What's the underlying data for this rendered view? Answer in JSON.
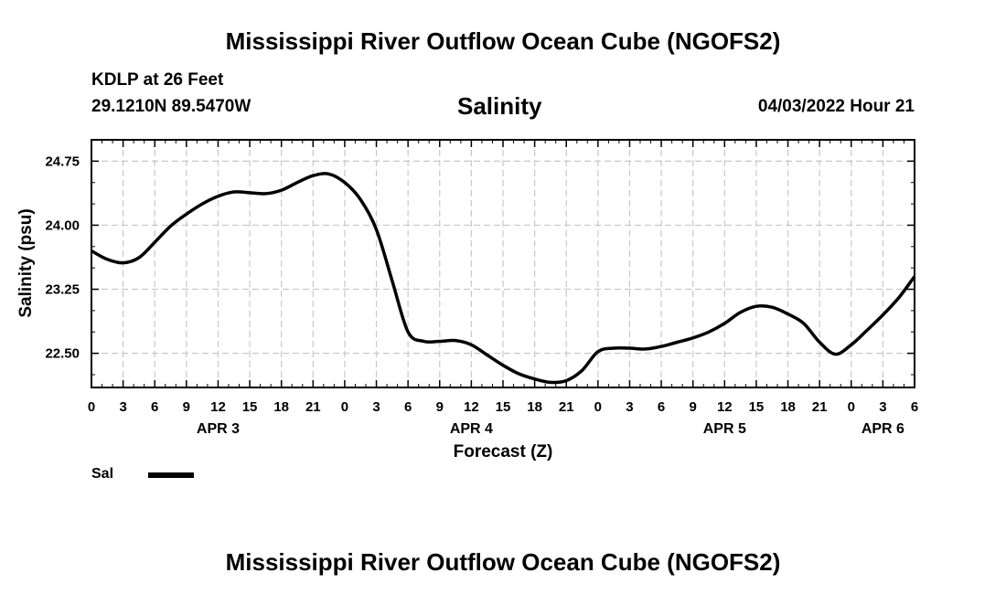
{
  "header": {
    "title": "Mississippi River Outflow Ocean Cube (NGOFS2)",
    "station": "KDLP at 26 Feet",
    "coordinates": "29.1210N  89.5470W",
    "variable": "Salinity",
    "datetime": "04/03/2022 Hour 21"
  },
  "footer": {
    "title": "Mississippi River Outflow Ocean Cube (NGOFS2)"
  },
  "legend": {
    "label": "Sal",
    "color": "#000000"
  },
  "chart_data": {
    "type": "line",
    "title": "Salinity",
    "xlabel": "Forecast (Z)",
    "ylabel": "Salinity (psu)",
    "xlim": [
      0,
      78
    ],
    "ylim": [
      22.1,
      25.0
    ],
    "grid": true,
    "x_tick_labels": [
      "0",
      "3",
      "6",
      "9",
      "12",
      "15",
      "18",
      "21",
      "0",
      "3",
      "6",
      "9",
      "12",
      "15",
      "18",
      "21",
      "0",
      "3",
      "6",
      "9",
      "12",
      "15",
      "18",
      "21",
      "0",
      "3",
      "6"
    ],
    "y_ticks": [
      22.5,
      23.25,
      24.0,
      24.75
    ],
    "y_tick_labels": [
      "22.50",
      "23.25",
      "24.00",
      "24.75"
    ],
    "day_labels": [
      {
        "label": "APR 3",
        "x": 12
      },
      {
        "label": "APR 4",
        "x": 36
      },
      {
        "label": "APR 5",
        "x": 60
      },
      {
        "label": "APR 6",
        "x": 75
      }
    ],
    "series": [
      {
        "name": "Sal",
        "color": "#000000",
        "x": [
          0,
          1.5,
          3,
          4.5,
          6,
          7.5,
          9,
          10.5,
          12,
          13.5,
          15,
          16.5,
          18,
          19.5,
          21,
          22.5,
          24,
          25.5,
          27,
          28.5,
          30,
          31.5,
          33,
          34.5,
          36,
          37.5,
          39,
          40.5,
          42,
          43.5,
          45,
          46.5,
          48,
          49.5,
          51,
          52.5,
          54,
          55.5,
          57,
          58.5,
          60,
          61.5,
          63,
          64.5,
          66,
          67.5,
          69,
          70.5,
          72,
          73.5,
          75,
          76.5,
          78
        ],
        "values": [
          23.7,
          23.6,
          23.56,
          23.62,
          23.8,
          23.99,
          24.13,
          24.25,
          24.34,
          24.39,
          24.38,
          24.37,
          24.41,
          24.5,
          24.58,
          24.6,
          24.5,
          24.3,
          23.95,
          23.35,
          22.75,
          22.64,
          22.64,
          22.65,
          22.6,
          22.48,
          22.36,
          22.26,
          22.2,
          22.16,
          22.18,
          22.3,
          22.52,
          22.56,
          22.56,
          22.55,
          22.58,
          22.63,
          22.68,
          22.75,
          22.85,
          22.98,
          23.05,
          23.04,
          22.96,
          22.85,
          22.63,
          22.49,
          22.6,
          22.77,
          22.95,
          23.15,
          23.4
        ]
      }
    ]
  }
}
